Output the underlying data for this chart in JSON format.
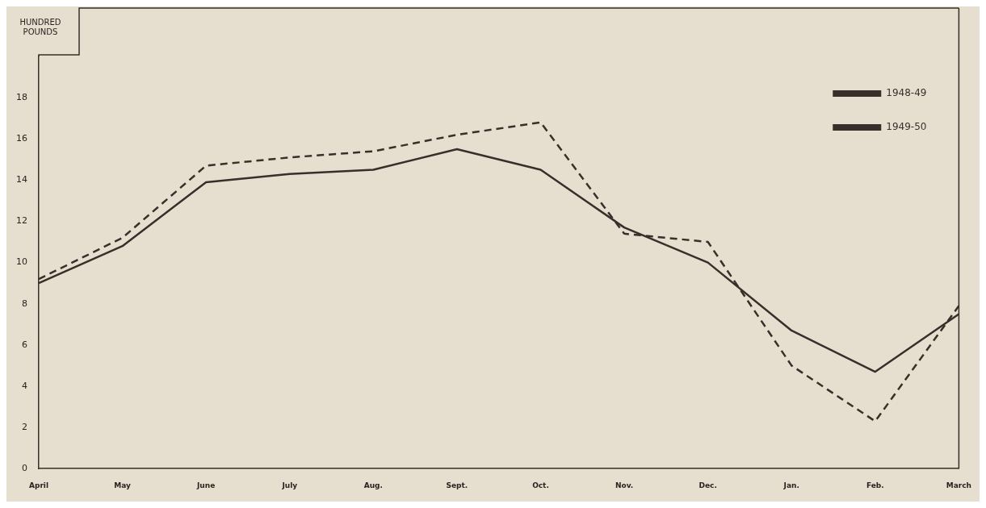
{
  "chart_data": {
    "type": "line",
    "ylabel": "HUNDRED POUNDS",
    "categories": [
      "April",
      "May",
      "June",
      "July",
      "Aug.",
      "Sept.",
      "Oct.",
      "Nov.",
      "Dec.",
      "Jan.",
      "Feb.",
      "March"
    ],
    "series": [
      {
        "name": "1948-49",
        "color": "#3a2e2b",
        "line_style": "solid",
        "values": [
          9.0,
          10.8,
          13.9,
          14.3,
          14.5,
          15.5,
          14.5,
          11.7,
          10.0,
          6.7,
          4.7,
          7.5
        ]
      },
      {
        "name": "1949-50",
        "color": "#3a2e2b",
        "line_style": "dashed",
        "values": [
          9.2,
          11.2,
          14.7,
          15.1,
          15.4,
          16.2,
          16.8,
          11.4,
          11.0,
          5.0,
          2.3,
          7.9
        ]
      }
    ],
    "ylim": [
      0,
      20
    ],
    "yticks": [
      0,
      2,
      4,
      6,
      8,
      10,
      12,
      14,
      16,
      18
    ],
    "grid": false,
    "legend": "top right",
    "marker": "none"
  }
}
